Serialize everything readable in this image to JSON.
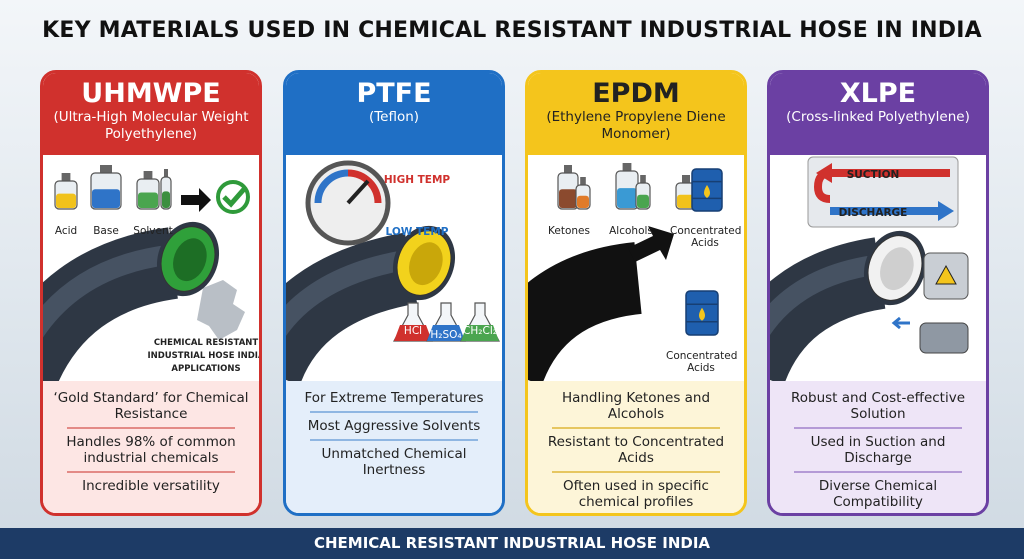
{
  "title": "KEY MATERIALS USED IN CHEMICAL RESISTANT INDUSTRIAL HOSE IN INDIA",
  "cards": [
    {
      "name": "UHMWPE",
      "subtitle": "(Ultra-High Molecular Weight Polyethylene)",
      "labels": [
        "Acid",
        "Base",
        "Solvent",
        "CHEMICAL RESISTANT",
        "INDUSTRIAL HOSE INDIA",
        "APPLICATIONS"
      ],
      "points": [
        "‘Gold Standard’ for Chemical Resistance",
        "Handles 98% of common industrial chemicals",
        "Incredible versatility"
      ]
    },
    {
      "name": "PTFE",
      "subtitle": "(Teflon)",
      "labels": [
        "HIGH TEMP",
        "LOW TEMP",
        "HCl",
        "H₂SO₄",
        "CH₂Cl₂"
      ],
      "points": [
        "For Extreme Temperatures",
        "Most Aggressive Solvents",
        "Unmatched Chemical Inertness"
      ]
    },
    {
      "name": "EPDM",
      "subtitle": "(Ethylene Propylene Diene Monomer)",
      "labels": [
        "Ketones",
        "Alcohols",
        "Concentrated Acids",
        "Concentrated Acids"
      ],
      "points": [
        "Handling Ketones and Alcohols",
        "Resistant to Concentrated Acids",
        "Often used in specific chemical profiles"
      ]
    },
    {
      "name": "XLPE",
      "subtitle": "(Cross-linked Polyethylene)",
      "labels": [
        "SUCTION",
        "DISCHARGE"
      ],
      "points": [
        "Robust and Cost-effective Solution",
        "Used in Suction and Discharge",
        "Diverse Chemical Compatibility"
      ]
    }
  ],
  "footer": "CHEMICAL RESISTANT INDUSTRIAL HOSE INDIA"
}
